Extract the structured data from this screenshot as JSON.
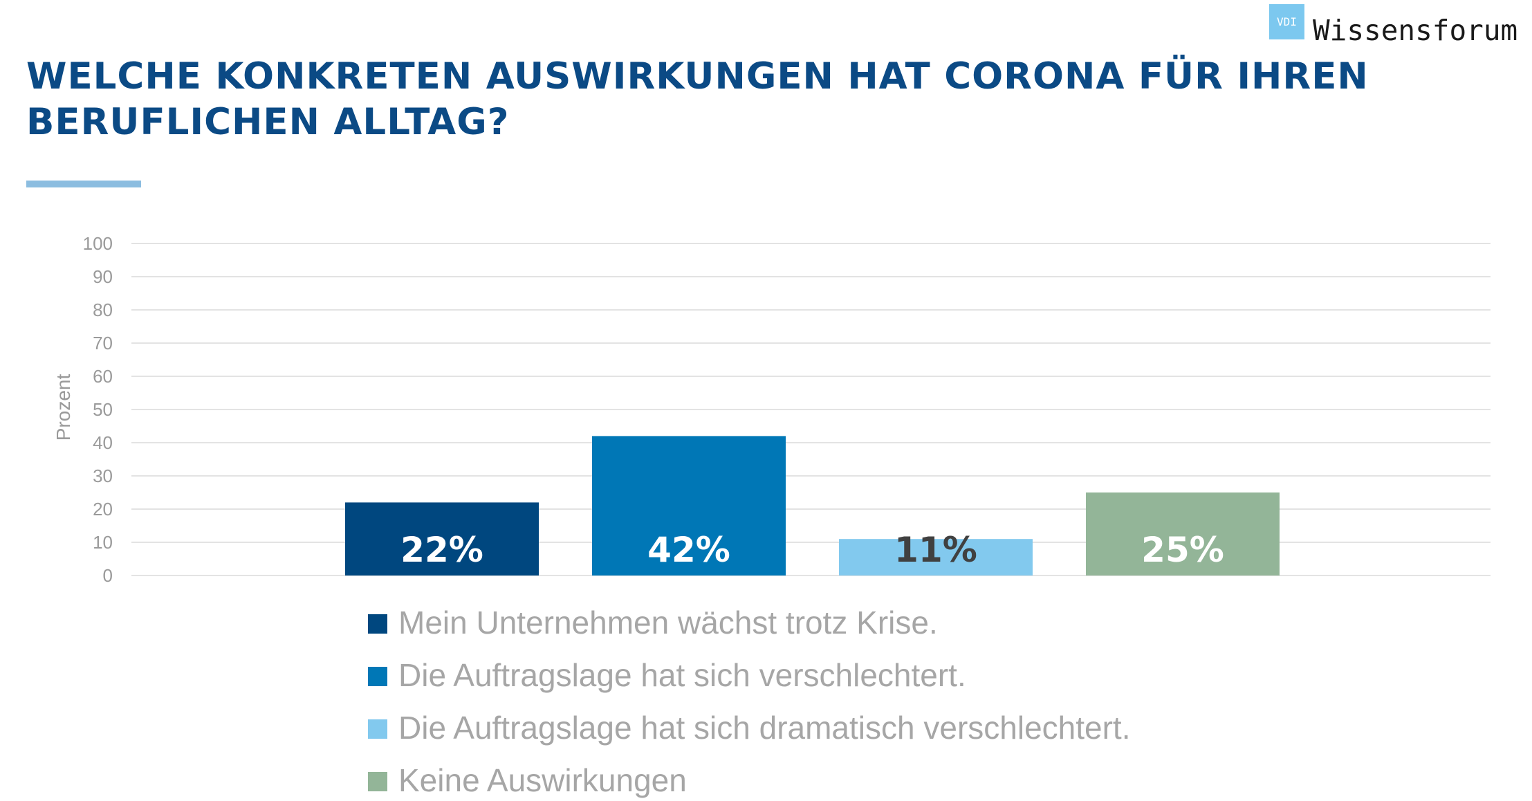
{
  "logo": {
    "mark_text": "VDI",
    "name": "Wissensforum"
  },
  "title": "WELCHE KONKRETEN AUSWIRKUNGEN HAT CORONA FÜR IHREN BERUFLICHEN ALLTAG?",
  "colors": {
    "title": "#0b4a85",
    "accent_line": "#8cbde0",
    "grid": "#e3e3e3",
    "axis_text": "#9a9a9a"
  },
  "chart_data": {
    "type": "bar",
    "categories": [
      "Mein Unternehmen wächst trotz Krise.",
      "Die Auftragslage hat sich verschlechtert.",
      "Die Auftragslage hat sich dramatisch verschlechtert.",
      "Keine Auswirkungen"
    ],
    "values": [
      22,
      42,
      11,
      25
    ],
    "data_labels": [
      "22%",
      "42%",
      "11%",
      "25%"
    ],
    "colors": [
      "#00477f",
      "#0077b6",
      "#82c9ee",
      "#93b598"
    ],
    "label_colors": [
      "#ffffff",
      "#ffffff",
      "#404040",
      "#ffffff"
    ],
    "ylabel": "Prozent",
    "ylim": [
      0,
      100
    ],
    "yticks": [
      0,
      10,
      20,
      30,
      40,
      50,
      60,
      70,
      80,
      90,
      100
    ],
    "grid": true,
    "legend_position": "bottom"
  }
}
